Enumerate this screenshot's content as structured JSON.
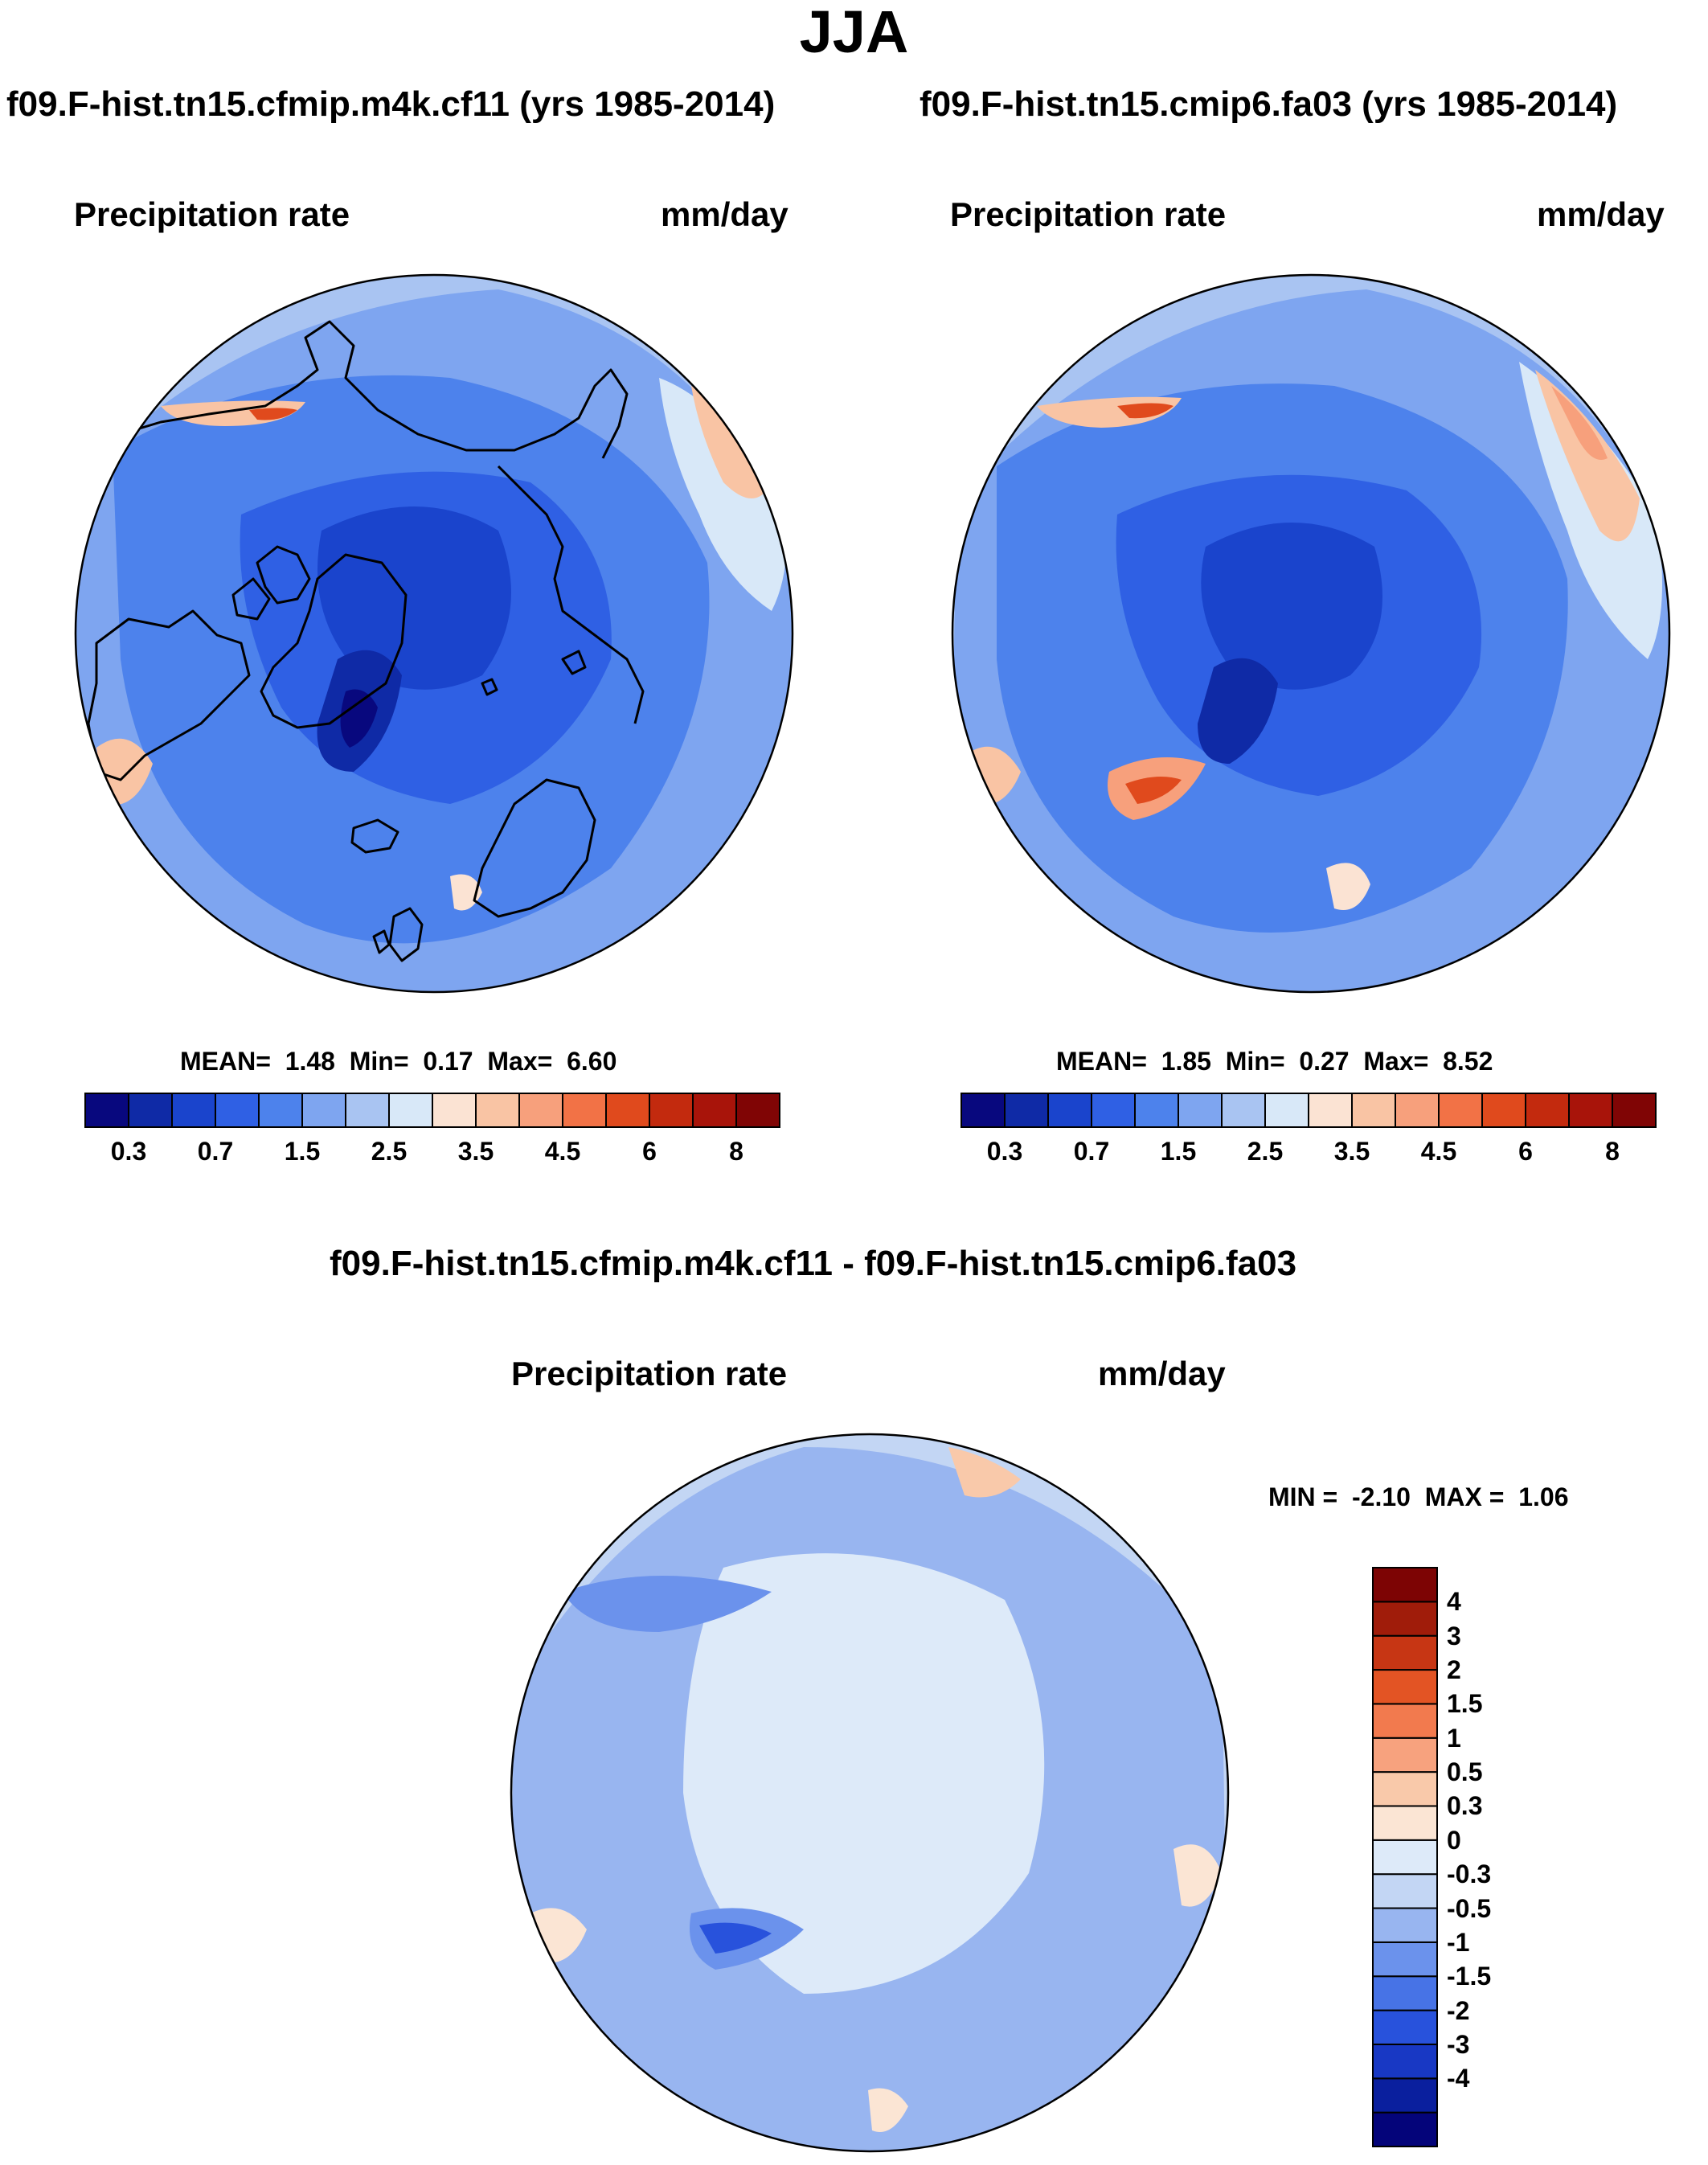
{
  "figure": {
    "title": "JJA",
    "panels": [
      {
        "title": "f09.F-hist.tn15.cfmip.m4k.cf11 (yrs 1985-2014)",
        "variable": "Precipitation rate",
        "units": "mm/day",
        "stats": {
          "mean_label": "MEAN=",
          "mean": "1.48",
          "min_label": "Min=",
          "min": "0.17",
          "max_label": "Max=",
          "max": "6.60"
        }
      },
      {
        "title": "f09.F-hist.tn15.cmip6.fa03 (yrs 1985-2014)",
        "variable": "Precipitation rate",
        "units": "mm/day",
        "stats": {
          "mean_label": "MEAN=",
          "mean": "1.85",
          "min_label": "Min=",
          "min": "0.27",
          "max_label": "Max=",
          "max": "8.52"
        }
      },
      {
        "title": "f09.F-hist.tn15.cfmip.m4k.cf11 - f09.F-hist.tn15.cmip6.fa03",
        "variable": "Precipitation rate",
        "units": "mm/day",
        "stats": {
          "min_label": "MIN =",
          "min": "-2.10",
          "max_label": "MAX =",
          "max": "1.06"
        }
      }
    ],
    "colorbar_abs": {
      "colors": [
        "#08087e",
        "#0f2aa6",
        "#1a44cc",
        "#2f60e4",
        "#4d82ec",
        "#7ea5f0",
        "#a9c4f2",
        "#d8e8f8",
        "#fbe3d3",
        "#f9c4a4",
        "#f7a07c",
        "#f27246",
        "#e04a1d",
        "#c32a0e",
        "#a8140a",
        "#800505"
      ],
      "tick_labels": [
        "0.3",
        "0.7",
        "1.5",
        "2.5",
        "3.5",
        "4.5",
        "6",
        "8"
      ]
    },
    "colorbar_diff": {
      "colors": [
        "#04047a",
        "#0a1f9e",
        "#1838c4",
        "#2852dc",
        "#4773e6",
        "#6b92ec",
        "#98b5f0",
        "#c3d6f4",
        "#ddeaf9",
        "#fbe5d4",
        "#f9c9aa",
        "#f7a27e",
        "#f27a4e",
        "#e35424",
        "#c73614",
        "#a01c0a",
        "#7d0404"
      ],
      "tick_labels": [
        "4",
        "3",
        "2",
        "1.5",
        "1",
        "0.5",
        "0.3",
        "0",
        "-0.3",
        "-0.5",
        "-1",
        "-1.5",
        "-2",
        "-3",
        "-4"
      ]
    },
    "map": {
      "projection": "north-polar-stereographic",
      "features": [
        "coastlines",
        "greenland",
        "arctic-ocean",
        "scandinavia",
        "iceland",
        "british-isles",
        "alaska",
        "kamchatka",
        "canadian-archipelago"
      ]
    }
  }
}
